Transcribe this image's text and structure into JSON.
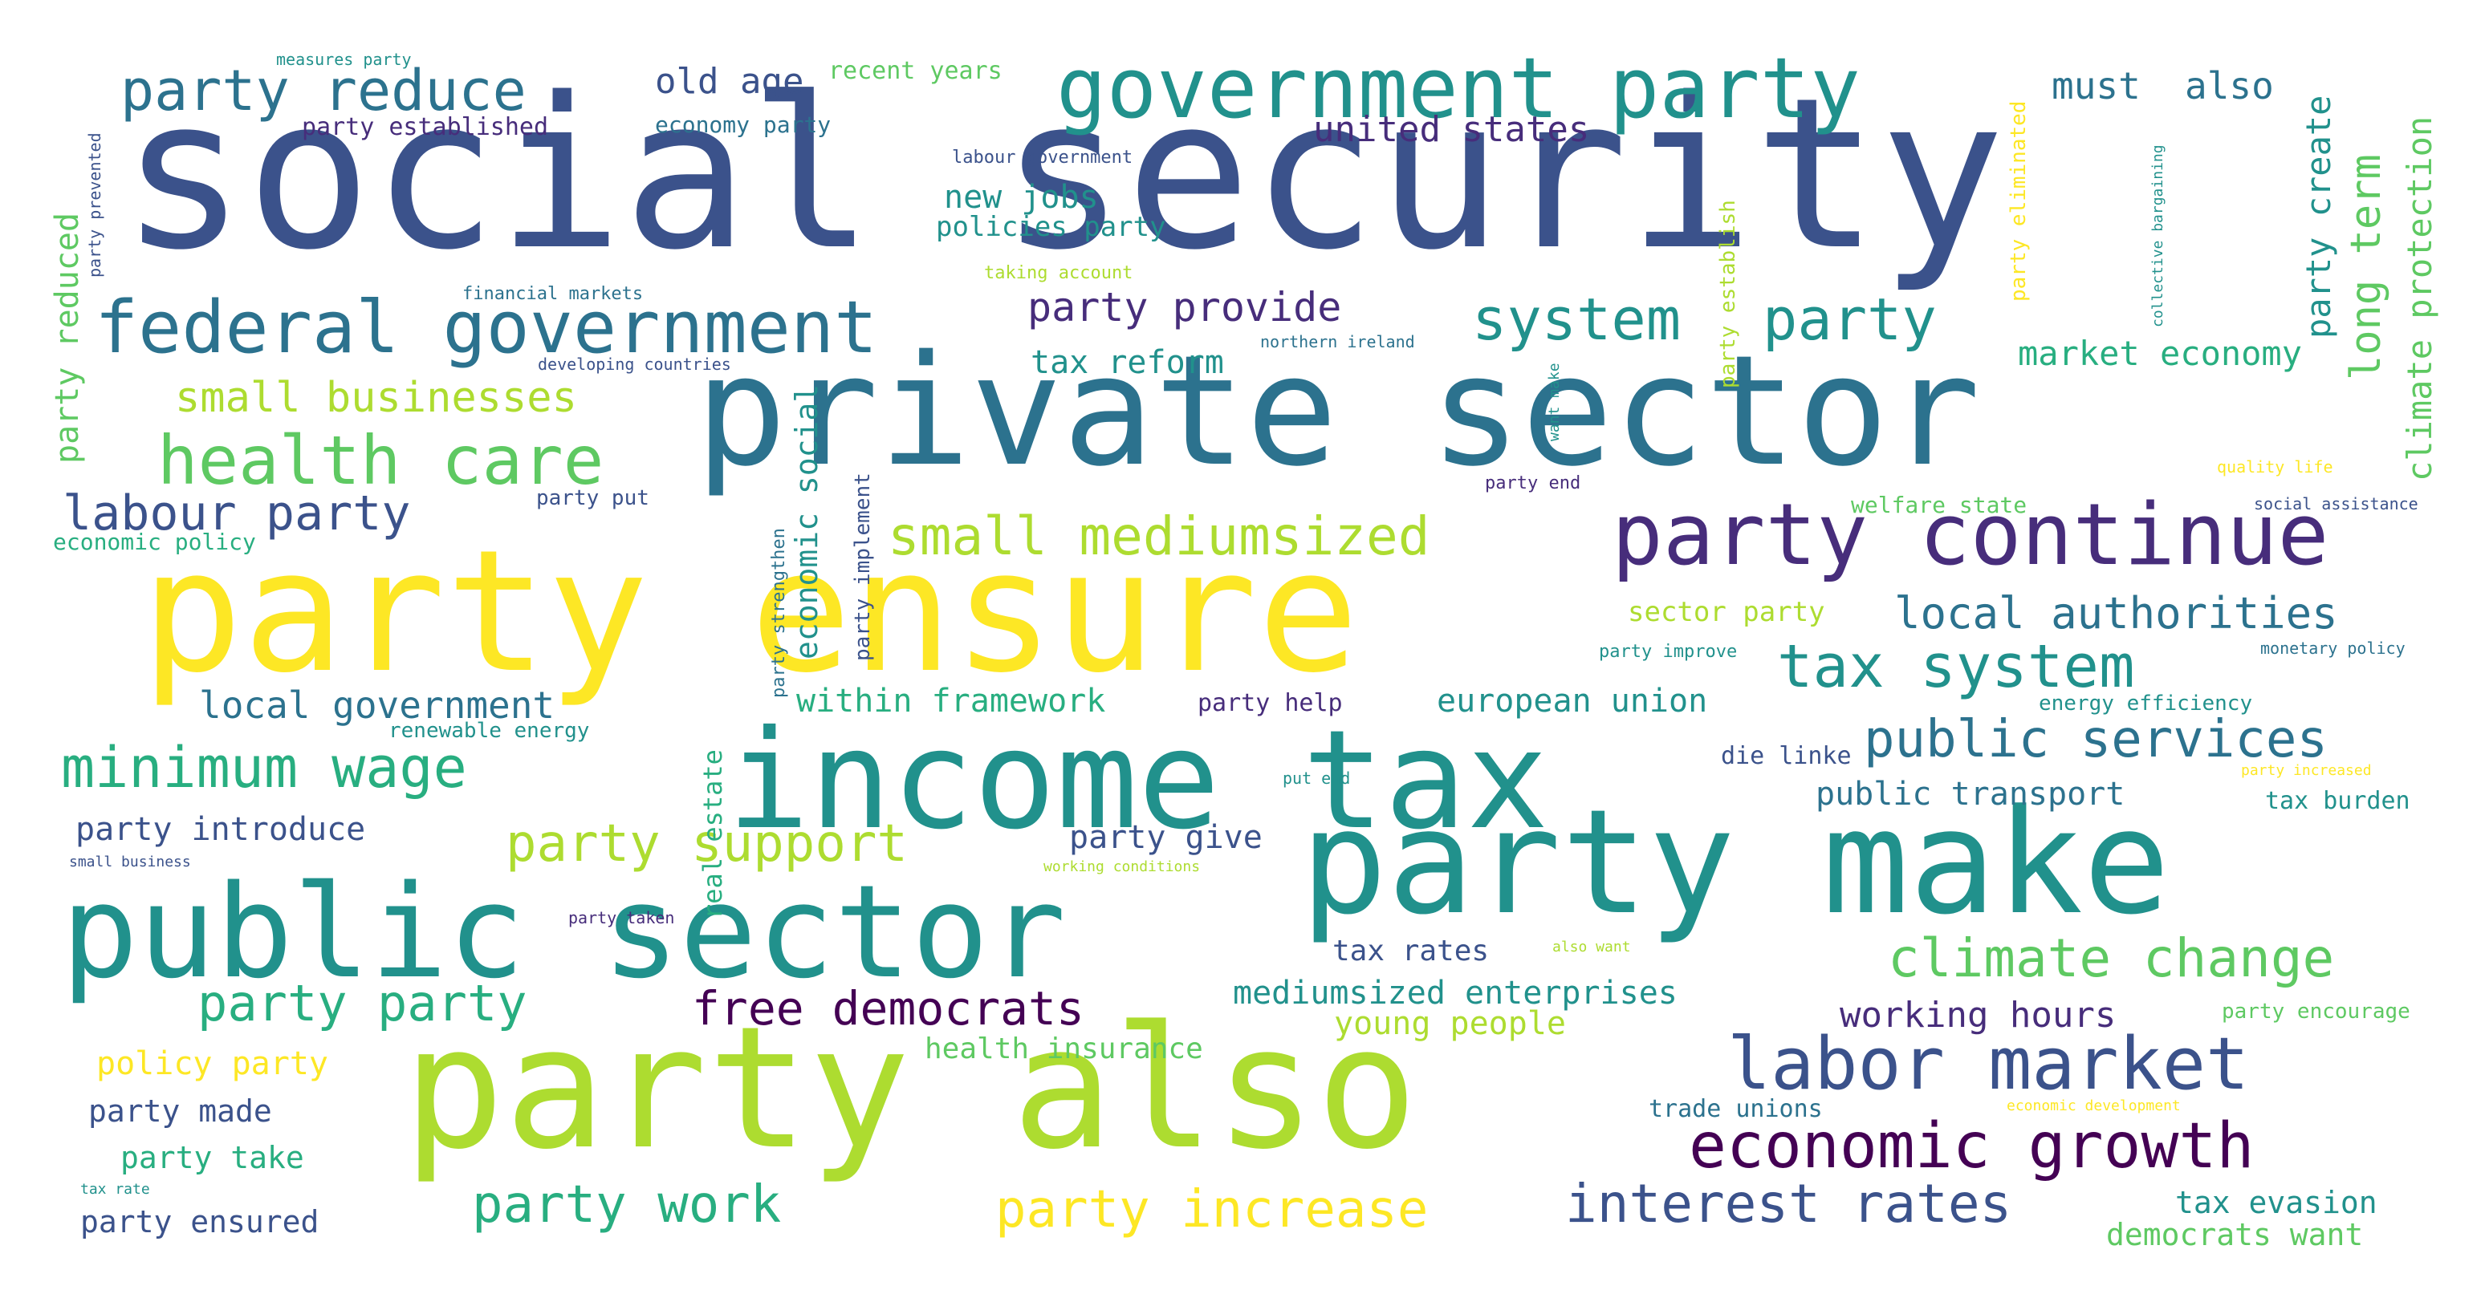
{
  "colors": {
    "background": "#ffffff",
    "palette": [
      "#440154",
      "#472d7b",
      "#3b528b",
      "#2c728e",
      "#21918c",
      "#28ae80",
      "#5ec962",
      "#addc30",
      "#fde725"
    ]
  },
  "words": [
    {
      "text": "social security",
      "color": "#3b528b"
    },
    {
      "text": "private sector",
      "color": "#2c728e"
    },
    {
      "text": "party ensure",
      "color": "#fde725"
    },
    {
      "text": "party also",
      "color": "#addc30"
    },
    {
      "text": "income tax",
      "color": "#21918c"
    },
    {
      "text": "party make",
      "color": "#21918c"
    },
    {
      "text": "public sector",
      "color": "#21918c"
    },
    {
      "text": "government party",
      "color": "#21918c"
    },
    {
      "text": "federal government",
      "color": "#2c728e"
    },
    {
      "text": "party continue",
      "color": "#472d7b"
    },
    {
      "text": "labor market",
      "color": "#3b528b"
    },
    {
      "text": "party reduce",
      "color": "#2c728e"
    },
    {
      "text": "system",
      "color": "#21918c"
    },
    {
      "text": "party",
      "color": "#21918c"
    },
    {
      "text": "health care",
      "color": "#5ec962"
    },
    {
      "text": "small mediumsized",
      "color": "#addc30"
    },
    {
      "text": "economic growth",
      "color": "#440154"
    },
    {
      "text": "minimum wage",
      "color": "#28ae80"
    },
    {
      "text": "tax system",
      "color": "#21918c"
    },
    {
      "text": "public services",
      "color": "#2c728e"
    },
    {
      "text": "local authorities",
      "color": "#2c728e"
    },
    {
      "text": "labour party",
      "color": "#3b528b"
    },
    {
      "text": "party party",
      "color": "#28ae80"
    },
    {
      "text": "free democrats",
      "color": "#440154"
    },
    {
      "text": "party support",
      "color": "#addc30"
    },
    {
      "text": "climate change",
      "color": "#5ec962"
    },
    {
      "text": "interest rates",
      "color": "#3b528b"
    },
    {
      "text": "party work",
      "color": "#28ae80"
    },
    {
      "text": "party increase",
      "color": "#fde725"
    },
    {
      "text": "small businesses",
      "color": "#addc30"
    },
    {
      "text": "party provide",
      "color": "#472d7b"
    },
    {
      "text": "long term",
      "color": "#5ec962"
    },
    {
      "text": "local government",
      "color": "#2c728e"
    },
    {
      "text": "old age",
      "color": "#3b528b"
    },
    {
      "text": "must",
      "color": "#2c728e"
    },
    {
      "text": "also",
      "color": "#2c728e"
    },
    {
      "text": "united states",
      "color": "#472d7b"
    },
    {
      "text": "new jobs",
      "color": "#21918c"
    },
    {
      "text": "policies party",
      "color": "#21918c"
    },
    {
      "text": "tax reform",
      "color": "#21918c"
    },
    {
      "text": "market economy",
      "color": "#28ae80"
    },
    {
      "text": "party create",
      "color": "#21918c"
    },
    {
      "text": "climate protection",
      "color": "#5ec962"
    },
    {
      "text": "party reduced",
      "color": "#5ec962"
    },
    {
      "text": "economic social",
      "color": "#21918c"
    },
    {
      "text": "within framework",
      "color": "#28ae80"
    },
    {
      "text": "european union",
      "color": "#21918c"
    },
    {
      "text": "mediumsized enterprises",
      "color": "#21918c"
    },
    {
      "text": "public transport",
      "color": "#2c728e"
    },
    {
      "text": "party introduce",
      "color": "#3b528b"
    },
    {
      "text": "party give",
      "color": "#3b528b"
    },
    {
      "text": "working hours",
      "color": "#472d7b"
    },
    {
      "text": "young people",
      "color": "#addc30"
    },
    {
      "text": "policy party",
      "color": "#fde725"
    },
    {
      "text": "party made",
      "color": "#3b528b"
    },
    {
      "text": "party take",
      "color": "#28ae80"
    },
    {
      "text": "party ensured",
      "color": "#3b528b"
    },
    {
      "text": "sector party",
      "color": "#addc30"
    },
    {
      "text": "tax rates",
      "color": "#3b528b"
    },
    {
      "text": "health insurance",
      "color": "#5ec962"
    },
    {
      "text": "tax evasion",
      "color": "#21918c"
    },
    {
      "text": "democrats want",
      "color": "#5ec962"
    },
    {
      "text": "recent years",
      "color": "#5ec962"
    },
    {
      "text": "party established",
      "color": "#472d7b"
    },
    {
      "text": "economy party",
      "color": "#2c728e"
    },
    {
      "text": "party help",
      "color": "#472d7b"
    },
    {
      "text": "die linke",
      "color": "#3b528b"
    },
    {
      "text": "tax burden",
      "color": "#21918c"
    },
    {
      "text": "real estate",
      "color": "#28ae80"
    },
    {
      "text": "party implement",
      "color": "#3b528b"
    },
    {
      "text": "party eliminated",
      "color": "#fde725"
    },
    {
      "text": "party establish",
      "color": "#addc30"
    },
    {
      "text": "welfare state",
      "color": "#5ec962"
    },
    {
      "text": "economic policy",
      "color": "#28ae80"
    },
    {
      "text": "renewable energy",
      "color": "#21918c"
    },
    {
      "text": "trade unions",
      "color": "#2c728e"
    },
    {
      "text": "energy efficiency",
      "color": "#21918c"
    },
    {
      "text": "party encourage",
      "color": "#5ec962"
    },
    {
      "text": "party put",
      "color": "#3b528b"
    },
    {
      "text": "party strengthen",
      "color": "#2c728e"
    },
    {
      "text": "party prevented",
      "color": "#3b528b"
    },
    {
      "text": "measures party",
      "color": "#21918c"
    },
    {
      "text": "labour government",
      "color": "#3b528b"
    },
    {
      "text": "taking account",
      "color": "#addc30"
    },
    {
      "text": "financial markets",
      "color": "#2c728e"
    },
    {
      "text": "developing countries",
      "color": "#3b528b"
    },
    {
      "text": "northern ireland",
      "color": "#2c728e"
    },
    {
      "text": "collective bargaining",
      "color": "#21918c"
    },
    {
      "text": "want make",
      "color": "#21918c"
    },
    {
      "text": "party end",
      "color": "#472d7b"
    },
    {
      "text": "quality life",
      "color": "#fde725"
    },
    {
      "text": "social assistance",
      "color": "#3b528b"
    },
    {
      "text": "monetary policy",
      "color": "#2c728e"
    },
    {
      "text": "party improve",
      "color": "#21918c"
    },
    {
      "text": "party increased",
      "color": "#fde725"
    },
    {
      "text": "put end",
      "color": "#21918c"
    },
    {
      "text": "small business",
      "color": "#3b528b"
    },
    {
      "text": "working conditions",
      "color": "#addc30"
    },
    {
      "text": "party taken",
      "color": "#472d7b"
    },
    {
      "text": "also want",
      "color": "#addc30"
    },
    {
      "text": "economic development",
      "color": "#fde725"
    },
    {
      "text": "tax rate",
      "color": "#21918c"
    }
  ]
}
